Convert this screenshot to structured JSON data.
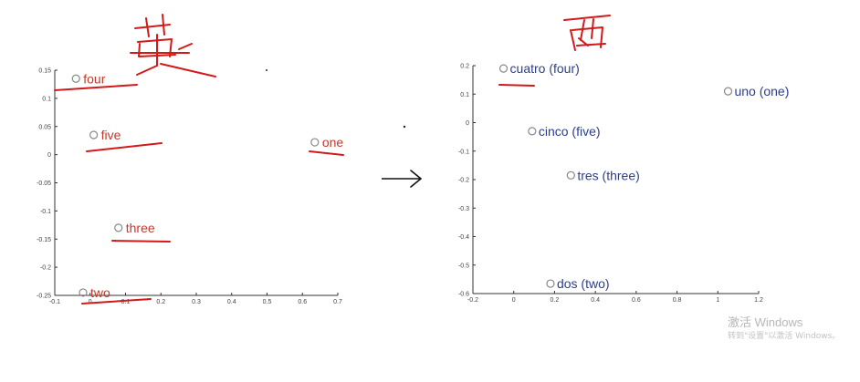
{
  "chart_data": [
    {
      "type": "scatter",
      "title": "",
      "xlabel": "",
      "ylabel": "",
      "xlim": [
        -0.1,
        0.7
      ],
      "ylim": [
        -0.25,
        0.15
      ],
      "xticks": [
        -0.1,
        0,
        0.1,
        0.2,
        0.3,
        0.4,
        0.5,
        0.6,
        0.7
      ],
      "xtick_labels": [
        "-0.1",
        "0",
        "0.1",
        "0.2",
        "0.3",
        "0.4",
        "0.5",
        "0.6",
        "0.7"
      ],
      "yticks": [
        0.15,
        0.1,
        0.05,
        0,
        -0.05,
        -0.1,
        -0.15,
        -0.2,
        -0.25
      ],
      "ytick_labels": [
        "0.15",
        "0.1",
        "0.05",
        "0",
        "-0.05",
        "-0.1",
        "-0.15",
        "-0.2",
        "-0.25"
      ],
      "label_color": "#c0392b",
      "marker_color": "#888888",
      "points": [
        {
          "label": "four",
          "x": -0.04,
          "y": 0.135
        },
        {
          "label": "five",
          "x": 0.01,
          "y": 0.035
        },
        {
          "label": "one",
          "x": 0.635,
          "y": 0.022
        },
        {
          "label": "three",
          "x": 0.08,
          "y": -0.13
        },
        {
          "label": "two",
          "x": -0.02,
          "y": -0.245
        }
      ]
    },
    {
      "type": "scatter",
      "title": "",
      "xlabel": "",
      "ylabel": "",
      "xlim": [
        -0.2,
        1.2
      ],
      "ylim": [
        -0.6,
        0.2
      ],
      "xticks": [
        -0.2,
        0,
        0.2,
        0.4,
        0.6,
        0.8,
        1,
        1.2
      ],
      "xtick_labels": [
        "-0.2",
        "0",
        "0.2",
        "0.4",
        "0.6",
        "0.8",
        "1",
        "1.2"
      ],
      "yticks": [
        0.2,
        0.1,
        0,
        -0.1,
        -0.2,
        -0.3,
        -0.4,
        -0.5,
        -0.6
      ],
      "ytick_labels": [
        "0.2",
        "0.1",
        "0",
        "-0.1",
        "-0.2",
        "-0.3",
        "-0.4",
        "-0.5",
        "-0.6"
      ],
      "label_color": "#2c3e8c",
      "marker_color": "#888888",
      "points": [
        {
          "label": "cuatro (four)",
          "x": -0.05,
          "y": 0.19
        },
        {
          "label": "uno (one)",
          "x": 1.05,
          "y": 0.11
        },
        {
          "label": "cinco (five)",
          "x": 0.09,
          "y": -0.03
        },
        {
          "label": "tres (three)",
          "x": 0.28,
          "y": -0.185
        },
        {
          "label": "dos (two)",
          "x": 0.18,
          "y": -0.565
        }
      ]
    }
  ],
  "annotations": {
    "left_heading": "英",
    "right_heading": "西",
    "ink_color": "#d11a1a"
  },
  "watermark": {
    "title": "激活 Windows",
    "subtitle": "转到\"设置\"以激活 Windows。"
  }
}
